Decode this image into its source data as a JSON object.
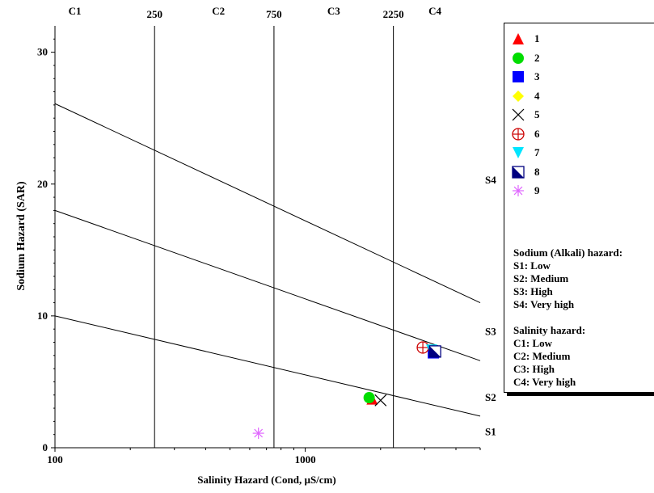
{
  "chart_data": {
    "type": "scatter",
    "xlabel": "Salinity Hazard (Cond, µS/cm)",
    "ylabel": "Sodium Hazard (SAR)",
    "x_scale": "log",
    "xlim": [
      100,
      5000
    ],
    "ylim": [
      0,
      32
    ],
    "x_ticks": [
      {
        "value": 100,
        "label": "100"
      },
      {
        "value": 1000,
        "label": "1000"
      }
    ],
    "y_ticks": [
      {
        "value": 0,
        "label": "0"
      },
      {
        "value": 10,
        "label": "10"
      },
      {
        "value": 20,
        "label": "20"
      },
      {
        "value": 30,
        "label": "30"
      }
    ],
    "salinity_boundaries": [
      {
        "value": 250,
        "label": "250"
      },
      {
        "value": 750,
        "label": "750"
      },
      {
        "value": 2250,
        "label": "2250"
      }
    ],
    "salinity_classes": [
      {
        "label": "C1",
        "x": 120
      },
      {
        "label": "C2",
        "x": 450
      },
      {
        "label": "C3",
        "x": 1300
      },
      {
        "label": "C4",
        "x": 3300
      }
    ],
    "sodium_lines": [
      {
        "x0": 100,
        "y0": 10,
        "x1": 5000,
        "y1": 2.4
      },
      {
        "x0": 100,
        "y0": 18,
        "x1": 5000,
        "y1": 6.6
      },
      {
        "x0": 100,
        "y0": 26.1,
        "x1": 5000,
        "y1": 11
      }
    ],
    "sodium_classes": [
      {
        "label": "S1",
        "y": 1.2
      },
      {
        "label": "S2",
        "y": 3.8
      },
      {
        "label": "S3",
        "y": 8.8
      },
      {
        "label": "S4",
        "y": 20.3
      }
    ],
    "series": [
      {
        "name": "1",
        "marker": "triangle-up",
        "color": "#ff0000",
        "points": [
          [
            1850,
            3.7
          ]
        ]
      },
      {
        "name": "2",
        "marker": "circle",
        "color": "#00dd00",
        "points": [
          [
            1800,
            3.8
          ]
        ]
      },
      {
        "name": "3",
        "marker": "square",
        "color": "#0000ff",
        "points": [
          [
            3250,
            7.2
          ]
        ]
      },
      {
        "name": "4",
        "marker": "diamond",
        "color": "#ffff00",
        "points": []
      },
      {
        "name": "5",
        "marker": "x",
        "color": "#000000",
        "points": [
          [
            2000,
            3.6
          ]
        ]
      },
      {
        "name": "6",
        "marker": "circle-plus",
        "color": "#cc0000",
        "points": [
          [
            2950,
            7.6
          ]
        ]
      },
      {
        "name": "7",
        "marker": "triangle-down",
        "color": "#00e5ff",
        "points": [
          [
            3200,
            7.4
          ]
        ]
      },
      {
        "name": "8",
        "marker": "half-square",
        "color": "#000080",
        "points": [
          [
            3300,
            7.3
          ]
        ]
      },
      {
        "name": "9",
        "marker": "asterisk",
        "color": "#e066ff",
        "points": [
          [
            650,
            1.1
          ]
        ]
      }
    ],
    "legend_placement": "right",
    "grid": false
  },
  "legend": {
    "sodium_title": "Sodium (Alkali) hazard:",
    "sodium_items": [
      "S1: Low",
      "S2: Medium",
      "S3: High",
      "S4: Very high"
    ],
    "salinity_title": "Salinity hazard:",
    "salinity_items": [
      "C1: Low",
      "C2: Medium",
      "C3: High",
      "C4: Very high"
    ]
  }
}
